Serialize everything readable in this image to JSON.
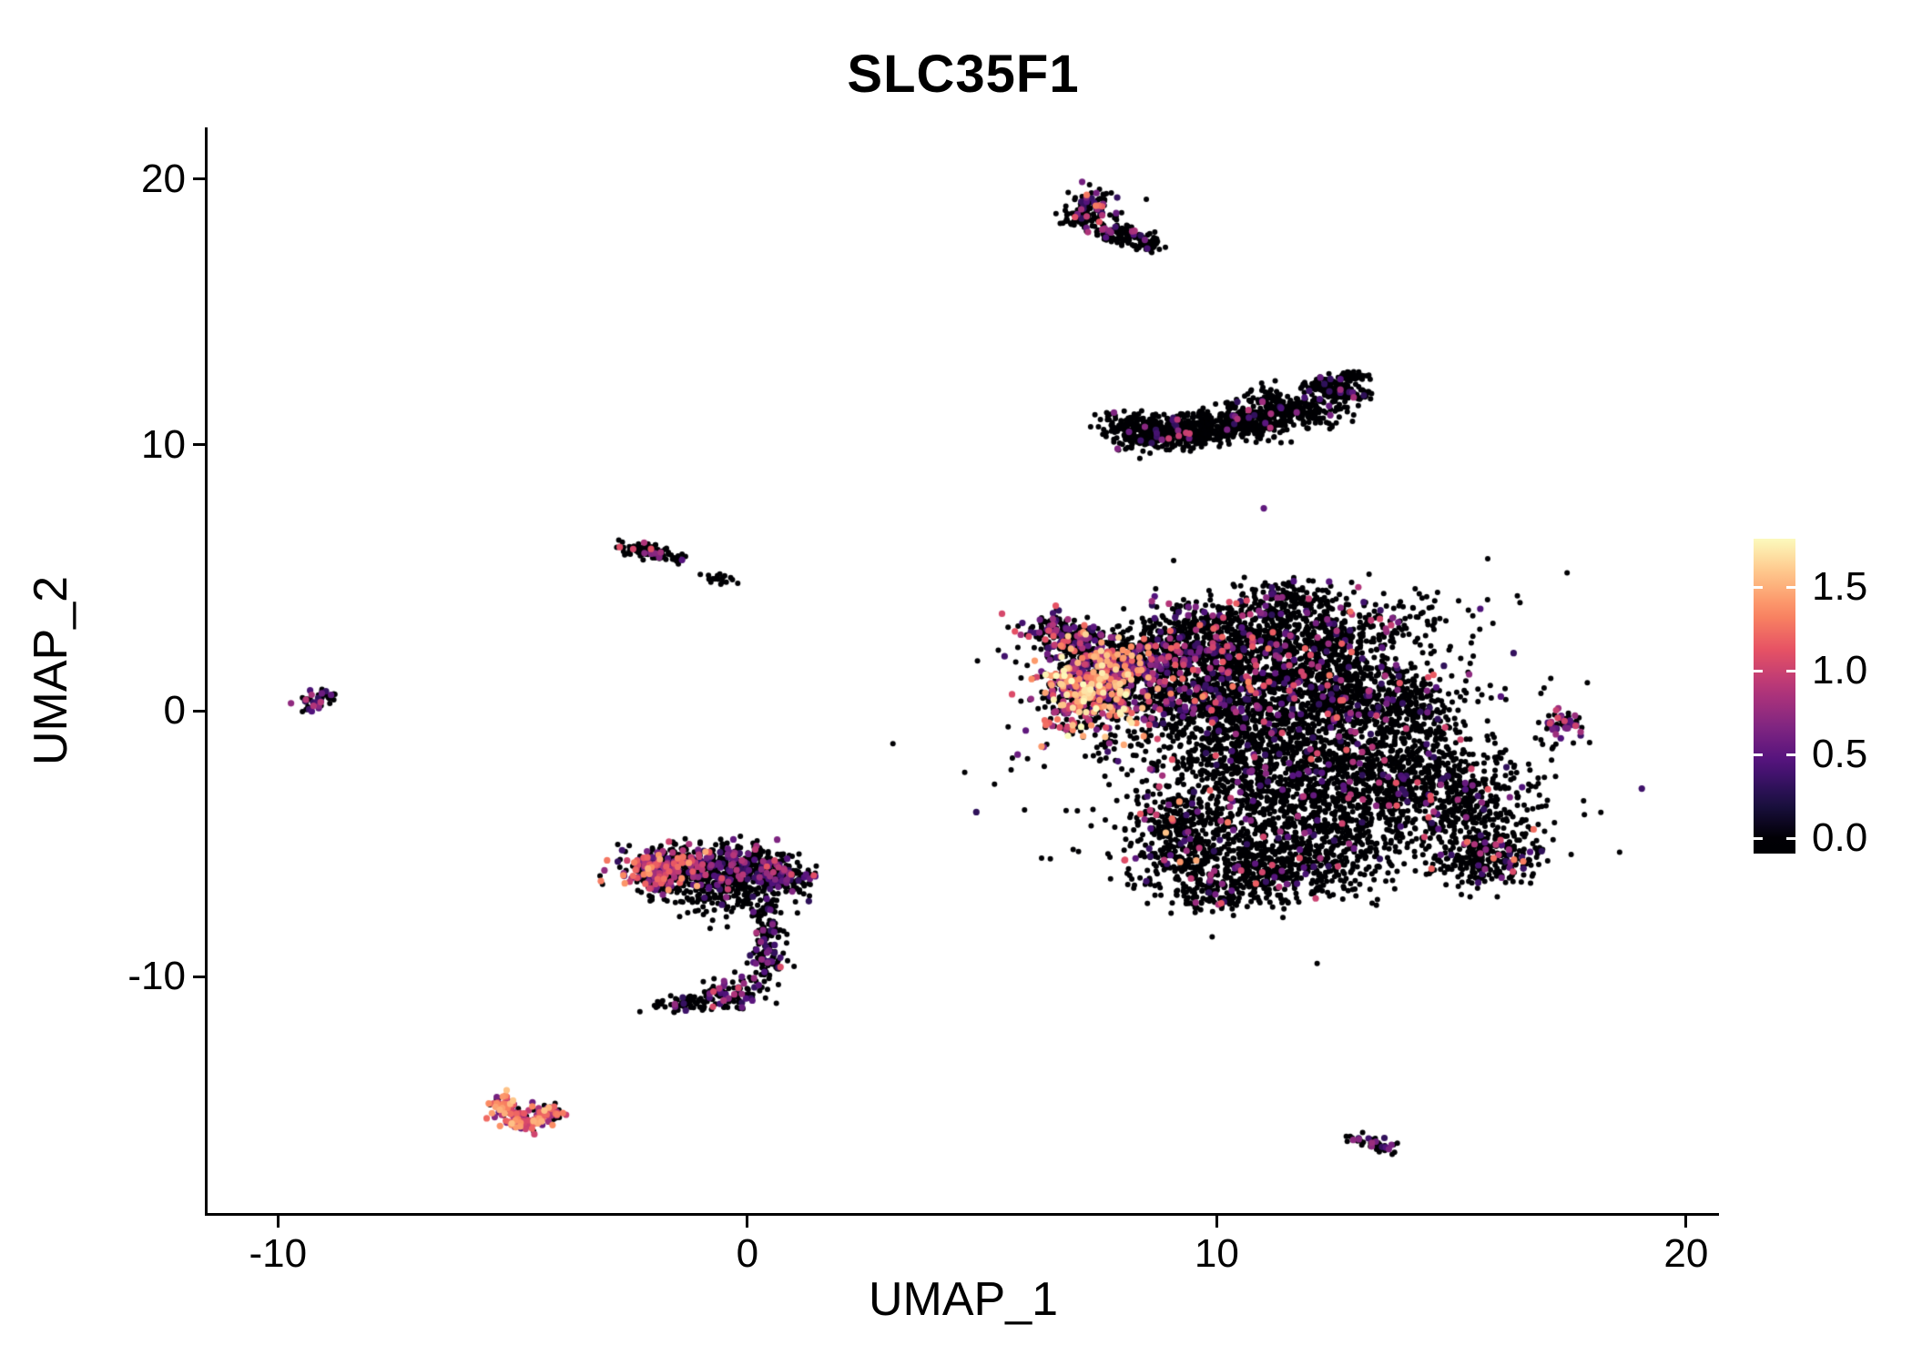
{
  "chart_data": {
    "type": "scatter",
    "title": "SLC35F1",
    "xlabel": "UMAP_1",
    "ylabel": "UMAP_2",
    "xlim": [
      -11.5,
      20.7
    ],
    "ylim": [
      -18.9,
      21.95
    ],
    "xticks": [
      -10,
      0,
      10,
      20
    ],
    "yticks": [
      -10,
      0,
      10,
      20
    ],
    "grid": false,
    "background": "#FFFFFF",
    "axis_color": "#000000",
    "legend": {
      "position": "right",
      "type": "colorbar",
      "bar_min": -0.09,
      "bar_max": 1.79,
      "value_max": 1.8,
      "ticks": [
        {
          "value": 0.0,
          "label": "0.0"
        },
        {
          "value": 0.5,
          "label": "0.5"
        },
        {
          "value": 1.0,
          "label": "1.0"
        },
        {
          "value": 1.5,
          "label": "1.5"
        }
      ]
    },
    "colormap": {
      "name": "magma",
      "stops": [
        [
          0.0,
          "#000004"
        ],
        [
          0.125,
          "#1D1147"
        ],
        [
          0.25,
          "#51127C"
        ],
        [
          0.375,
          "#822681"
        ],
        [
          0.5,
          "#B63679"
        ],
        [
          0.625,
          "#E65164"
        ],
        [
          0.75,
          "#FB8861"
        ],
        [
          0.875,
          "#FEC287"
        ],
        [
          1.0,
          "#FCFDBF"
        ]
      ]
    },
    "point_radius": {
      "zero": 3.0,
      "expressed": 3.6
    },
    "seed": 42,
    "clusters": [
      {
        "name": "top-small",
        "blobs": [
          {
            "x": 7.3,
            "y": 18.8,
            "sx": 0.28,
            "sy": 0.42,
            "n": 140,
            "frac": 0.3,
            "vmin": 0.3,
            "vmax": 1.3
          },
          {
            "x": 8.0,
            "y": 17.9,
            "sx": 0.4,
            "sy": 0.22,
            "rot": -25,
            "n": 90,
            "frac": 0.08,
            "vmin": 0.3,
            "vmax": 0.9
          },
          {
            "x": 8.5,
            "y": 17.5,
            "sx": 0.18,
            "sy": 0.12,
            "n": 30,
            "frac": 0.03,
            "vmin": 0.3,
            "vmax": 0.8
          }
        ]
      },
      {
        "name": "crescent",
        "blobs": [
          {
            "x": 8.4,
            "y": 10.5,
            "sx": 0.4,
            "sy": 0.32,
            "n": 260,
            "frac": 0.05,
            "vmin": 0.3,
            "vmax": 1.0
          },
          {
            "x": 9.4,
            "y": 10.5,
            "sx": 0.45,
            "sy": 0.3,
            "n": 300,
            "frac": 0.04,
            "vmin": 0.3,
            "vmax": 1.0
          },
          {
            "x": 10.5,
            "y": 10.8,
            "sx": 0.5,
            "sy": 0.3,
            "n": 300,
            "frac": 0.04,
            "vmin": 0.3,
            "vmax": 1.0
          },
          {
            "x": 11.6,
            "y": 11.4,
            "sx": 0.5,
            "sy": 0.28,
            "rot": -20,
            "n": 260,
            "frac": 0.04,
            "vmin": 0.3,
            "vmax": 1.0
          },
          {
            "x": 12.5,
            "y": 12.1,
            "sx": 0.35,
            "sy": 0.2,
            "rot": -30,
            "n": 150,
            "frac": 0.04,
            "vmin": 0.3,
            "vmax": 0.9
          },
          {
            "x": 12.9,
            "y": 12.6,
            "sx": 0.15,
            "sy": 0.1,
            "n": 40,
            "frac": 0.05,
            "vmin": 0.3,
            "vmax": 0.8
          }
        ]
      },
      {
        "name": "small-upper-left",
        "blobs": [
          {
            "x": -2.2,
            "y": 6.0,
            "sx": 0.3,
            "sy": 0.16,
            "rot": -15,
            "n": 80,
            "frac": 0.1,
            "vmin": 0.4,
            "vmax": 1.1
          },
          {
            "x": -1.5,
            "y": 5.7,
            "sx": 0.12,
            "sy": 0.1,
            "n": 15,
            "frac": 0.05,
            "vmin": 0.3,
            "vmax": 0.8
          },
          {
            "x": -0.6,
            "y": 5.0,
            "sx": 0.2,
            "sy": 0.12,
            "rot": -20,
            "n": 18,
            "frac": 0.0,
            "vmin": 0,
            "vmax": 0
          }
        ]
      },
      {
        "name": "far-left-small",
        "blobs": [
          {
            "x": -9.1,
            "y": 0.4,
            "sx": 0.2,
            "sy": 0.24,
            "n": 40,
            "frac": 0.45,
            "vmin": 0.3,
            "vmax": 1.1
          }
        ]
      },
      {
        "name": "main",
        "blobs": [
          {
            "x": 6.4,
            "y": 3.1,
            "sx": 0.3,
            "sy": 0.28,
            "n": 70,
            "frac": 0.25,
            "vmin": 0.3,
            "vmax": 1.2
          },
          {
            "x": 7.0,
            "y": 2.6,
            "sx": 0.4,
            "sy": 0.35,
            "n": 150,
            "frac": 0.3,
            "vmin": 0.3,
            "vmax": 1.4
          },
          {
            "x": 7.3,
            "y": 0.8,
            "sx": 0.55,
            "sy": 0.8,
            "n": 600,
            "frac": 0.55,
            "vmin": 0.3,
            "vmax": 1.8
          },
          {
            "x": 8.1,
            "y": 1.8,
            "sx": 0.6,
            "sy": 0.5,
            "n": 350,
            "frac": 0.35,
            "vmin": 0.3,
            "vmax": 1.6
          },
          {
            "x": 9.8,
            "y": 2.6,
            "sx": 1.0,
            "sy": 0.75,
            "n": 600,
            "frac": 0.15,
            "vmin": 0.3,
            "vmax": 1.3
          },
          {
            "x": 11.9,
            "y": 2.9,
            "sx": 1.1,
            "sy": 0.75,
            "n": 550,
            "frac": 0.13,
            "vmin": 0.3,
            "vmax": 1.3
          },
          {
            "x": 11.5,
            "y": 4.2,
            "sx": 0.55,
            "sy": 0.35,
            "n": 110,
            "frac": 0.12,
            "vmin": 0.3,
            "vmax": 1.1
          },
          {
            "x": 9.6,
            "y": 0.5,
            "sx": 0.9,
            "sy": 0.8,
            "n": 500,
            "frac": 0.18,
            "vmin": 0.3,
            "vmax": 1.4
          },
          {
            "x": 11.8,
            "y": 0.8,
            "sx": 1.1,
            "sy": 0.9,
            "n": 600,
            "frac": 0.1,
            "vmin": 0.3,
            "vmax": 1.3
          },
          {
            "x": 13.7,
            "y": 0.2,
            "sx": 0.9,
            "sy": 0.9,
            "n": 430,
            "frac": 0.09,
            "vmin": 0.3,
            "vmax": 1.2
          },
          {
            "x": 11.0,
            "y": -1.7,
            "sx": 1.3,
            "sy": 1.0,
            "n": 800,
            "frac": 0.06,
            "vmin": 0.3,
            "vmax": 1.2
          },
          {
            "x": 13.6,
            "y": -2.4,
            "sx": 1.0,
            "sy": 1.0,
            "n": 550,
            "frac": 0.06,
            "vmin": 0.3,
            "vmax": 1.2
          },
          {
            "x": 15.3,
            "y": -3.4,
            "sx": 0.8,
            "sy": 1.0,
            "n": 380,
            "frac": 0.08,
            "vmin": 0.3,
            "vmax": 1.2
          },
          {
            "x": 15.8,
            "y": -5.5,
            "sx": 0.65,
            "sy": 0.55,
            "n": 260,
            "frac": 0.15,
            "vmin": 0.3,
            "vmax": 1.4
          },
          {
            "x": 11.6,
            "y": -4.4,
            "sx": 1.4,
            "sy": 1.0,
            "n": 780,
            "frac": 0.05,
            "vmin": 0.3,
            "vmax": 1.2
          },
          {
            "x": 11.0,
            "y": -6.1,
            "sx": 1.2,
            "sy": 0.55,
            "n": 420,
            "frac": 0.05,
            "vmin": 0.3,
            "vmax": 1.2
          },
          {
            "x": 9.1,
            "y": -4.6,
            "sx": 0.5,
            "sy": 0.85,
            "n": 260,
            "frac": 0.12,
            "vmin": 0.3,
            "vmax": 1.6
          },
          {
            "x": 10.0,
            "y": -7.0,
            "sx": 0.5,
            "sy": 0.3,
            "n": 90,
            "frac": 0.08,
            "vmin": 0.3,
            "vmax": 1.0
          },
          {
            "x": 11.2,
            "y": -0.8,
            "sx": 2.9,
            "sy": 2.6,
            "n": 320,
            "frac": 0.06,
            "vmin": 0.3,
            "vmax": 1.2
          },
          {
            "x": 13.6,
            "y": 3.7,
            "sx": 1.3,
            "sy": 0.55,
            "n": 60,
            "frac": 0.1,
            "vmin": 0.3,
            "vmax": 1.1
          }
        ]
      },
      {
        "name": "right-small",
        "blobs": [
          {
            "x": 17.4,
            "y": -0.5,
            "sx": 0.22,
            "sy": 0.3,
            "n": 55,
            "frac": 0.5,
            "vmin": 0.3,
            "vmax": 1.1
          }
        ]
      },
      {
        "name": "mid-left",
        "blobs": [
          {
            "x": -1.9,
            "y": -6.0,
            "sx": 0.45,
            "sy": 0.4,
            "n": 280,
            "frac": 0.5,
            "vmin": 0.3,
            "vmax": 1.5
          },
          {
            "x": -0.9,
            "y": -5.9,
            "sx": 0.5,
            "sy": 0.45,
            "n": 280,
            "frac": 0.25,
            "vmin": 0.3,
            "vmax": 1.2
          },
          {
            "x": 0.2,
            "y": -5.9,
            "sx": 0.5,
            "sy": 0.4,
            "n": 250,
            "frac": 0.2,
            "vmin": 0.3,
            "vmax": 1.2
          },
          {
            "x": 0.8,
            "y": -6.3,
            "sx": 0.3,
            "sy": 0.3,
            "n": 120,
            "frac": 0.25,
            "vmin": 0.3,
            "vmax": 1.2
          },
          {
            "x": -0.3,
            "y": -7.0,
            "sx": 0.7,
            "sy": 0.4,
            "n": 140,
            "frac": 0.1,
            "vmin": 0.3,
            "vmax": 1.0
          },
          {
            "x": 0.4,
            "y": -8.3,
            "sx": 0.18,
            "sy": 0.5,
            "n": 60,
            "frac": 0.15,
            "vmin": 0.3,
            "vmax": 1.0
          },
          {
            "x": 0.4,
            "y": -9.6,
            "sx": 0.22,
            "sy": 0.45,
            "n": 70,
            "frac": 0.3,
            "vmin": 0.3,
            "vmax": 1.1
          },
          {
            "x": -0.3,
            "y": -10.6,
            "sx": 0.4,
            "sy": 0.3,
            "rot": 30,
            "n": 80,
            "frac": 0.3,
            "vmin": 0.3,
            "vmax": 1.1
          },
          {
            "x": -1.3,
            "y": -11.0,
            "sx": 0.4,
            "sy": 0.18,
            "rot": 10,
            "n": 70,
            "frac": 0.2,
            "vmin": 0.3,
            "vmax": 1.0
          }
        ]
      },
      {
        "name": "bottom-left-hot",
        "blobs": [
          {
            "x": -5.2,
            "y": -14.9,
            "sx": 0.22,
            "sy": 0.2,
            "rot": 40,
            "n": 50,
            "frac": 0.8,
            "vmin": 0.5,
            "vmax": 1.6
          },
          {
            "x": -4.7,
            "y": -15.4,
            "sx": 0.28,
            "sy": 0.18,
            "n": 70,
            "frac": 0.85,
            "vmin": 0.5,
            "vmax": 1.6
          },
          {
            "x": -4.2,
            "y": -15.1,
            "sx": 0.2,
            "sy": 0.16,
            "rot": -35,
            "n": 50,
            "frac": 0.6,
            "vmin": 0.4,
            "vmax": 1.4
          }
        ]
      },
      {
        "name": "bottom-right-small",
        "blobs": [
          {
            "x": 13.4,
            "y": -16.3,
            "sx": 0.28,
            "sy": 0.12,
            "rot": -25,
            "n": 45,
            "frac": 0.35,
            "vmin": 0.3,
            "vmax": 0.9
          }
        ]
      }
    ]
  }
}
